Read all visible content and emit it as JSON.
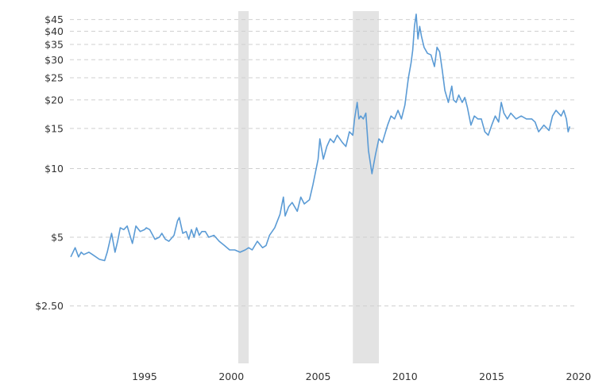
{
  "chart_data": {
    "type": "line",
    "title": "",
    "xlabel": "",
    "ylabel": "",
    "y_scale": "log",
    "xlim": [
      1990.7,
      2019.8
    ],
    "ylim": [
      1.4,
      49
    ],
    "grid": "horizontal dashed",
    "y_ticks": [
      {
        "value": 2.5,
        "label": "$2.50"
      },
      {
        "value": 5,
        "label": "$5"
      },
      {
        "value": 10,
        "label": "$10"
      },
      {
        "value": 15,
        "label": "$15"
      },
      {
        "value": 20,
        "label": "$20"
      },
      {
        "value": 25,
        "label": "$25"
      },
      {
        "value": 30,
        "label": "$30"
      },
      {
        "value": 35,
        "label": "$35"
      },
      {
        "value": 40,
        "label": "$40"
      },
      {
        "value": 45,
        "label": "$45"
      }
    ],
    "x_ticks": [
      {
        "value": 1995,
        "label": "1995"
      },
      {
        "value": 2000,
        "label": "2000"
      },
      {
        "value": 2005,
        "label": "2005"
      },
      {
        "value": 2010,
        "label": "2010"
      },
      {
        "value": 2015,
        "label": "2015"
      },
      {
        "value": 2020,
        "label": "2020"
      }
    ],
    "recessions": [
      {
        "start": 2000.4,
        "end": 2001.0
      },
      {
        "start": 2007.0,
        "end": 2008.5
      }
    ],
    "colors": {
      "line": "#5b9bd5",
      "recession": "#e3e3e3",
      "grid": "#cfcfcf",
      "text": "#333333"
    },
    "series": [
      {
        "x": [
          1990.75,
          1991.0,
          1991.2,
          1991.35,
          1991.5,
          1991.8,
          1992.0,
          1992.4,
          1992.7,
          1992.85,
          1993.1,
          1993.3,
          1993.45,
          1993.6,
          1993.8,
          1994.0,
          1994.3,
          1994.5,
          1994.75,
          1995.0,
          1995.1,
          1995.3,
          1995.6,
          1995.85,
          1996.0,
          1996.2,
          1996.4,
          1996.7,
          1996.9,
          1997.0,
          1997.2,
          1997.4,
          1997.55,
          1997.7,
          1997.85,
          1998.0,
          1998.15,
          1998.3,
          1998.5,
          1998.7,
          1999.0,
          1999.3,
          1999.6,
          1999.9,
          2000.2,
          2000.5,
          2000.8,
          2001.0,
          2001.2,
          2001.5,
          2001.8,
          2002.0,
          2002.2,
          2002.5,
          2002.8,
          2003.0,
          2003.1,
          2003.3,
          2003.5,
          2003.8,
          2004.0,
          2004.2,
          2004.5,
          2004.7,
          2005.0,
          2005.1,
          2005.3,
          2005.5,
          2005.7,
          2005.9,
          2006.1,
          2006.4,
          2006.6,
          2006.8,
          2007.0,
          2007.1,
          2007.25,
          2007.35,
          2007.45,
          2007.6,
          2007.75,
          2007.9,
          2008.1,
          2008.3,
          2008.5,
          2008.7,
          2009.0,
          2009.2,
          2009.4,
          2009.6,
          2009.8,
          2010.0,
          2010.2,
          2010.35,
          2010.45,
          2010.55,
          2010.65,
          2010.75,
          2010.85,
          2010.95,
          2011.1,
          2011.3,
          2011.5,
          2011.7,
          2011.85,
          2012.0,
          2012.15,
          2012.3,
          2012.5,
          2012.7,
          2012.8,
          2012.95,
          2013.1,
          2013.3,
          2013.45,
          2013.6,
          2013.8,
          2014.0,
          2014.2,
          2014.4,
          2014.6,
          2014.8,
          2015.0,
          2015.2,
          2015.4,
          2015.55,
          2015.7,
          2015.9,
          2016.1,
          2016.4,
          2016.7,
          2017.0,
          2017.3,
          2017.5,
          2017.7,
          2018.0,
          2018.3,
          2018.5,
          2018.7,
          2018.85,
          2019.0,
          2019.15,
          2019.3,
          2019.4,
          2019.5
        ],
        "values": [
          4.1,
          4.5,
          4.1,
          4.3,
          4.2,
          4.3,
          4.2,
          4.0,
          3.95,
          4.3,
          5.2,
          4.3,
          4.8,
          5.5,
          5.4,
          5.6,
          4.7,
          5.6,
          5.3,
          5.4,
          5.5,
          5.4,
          4.9,
          5.0,
          5.2,
          4.9,
          4.8,
          5.1,
          5.9,
          6.1,
          5.2,
          5.3,
          4.9,
          5.4,
          5.0,
          5.5,
          5.1,
          5.3,
          5.3,
          5.0,
          5.1,
          4.8,
          4.6,
          4.4,
          4.4,
          4.3,
          4.4,
          4.5,
          4.4,
          4.8,
          4.5,
          4.6,
          5.1,
          5.5,
          6.3,
          7.5,
          6.2,
          6.8,
          7.1,
          6.5,
          7.5,
          7.0,
          7.3,
          8.5,
          11.0,
          13.5,
          11.0,
          12.5,
          13.5,
          13.0,
          14.0,
          13.0,
          12.5,
          14.5,
          14.0,
          16.5,
          19.5,
          16.5,
          17.0,
          16.5,
          17.5,
          12.0,
          9.5,
          11.5,
          13.5,
          13.0,
          15.5,
          17.0,
          16.5,
          18.0,
          16.5,
          19.0,
          25.0,
          29.0,
          33.0,
          42.0,
          47.5,
          37.0,
          42.0,
          38.0,
          34.0,
          32.0,
          31.5,
          28.0,
          34.0,
          32.5,
          27.0,
          22.0,
          19.5,
          23.0,
          20.0,
          19.5,
          21.0,
          19.5,
          20.5,
          18.5,
          15.5,
          17.0,
          16.5,
          16.5,
          14.5,
          14.0,
          15.5,
          17.0,
          16.0,
          19.5,
          17.5,
          16.5,
          17.5,
          16.5,
          17.0,
          16.5,
          16.5,
          16.0,
          14.5,
          15.5,
          14.7,
          17.0,
          18.0,
          17.5,
          17.0,
          18.0,
          16.5,
          14.5,
          15.3
        ]
      }
    ]
  }
}
